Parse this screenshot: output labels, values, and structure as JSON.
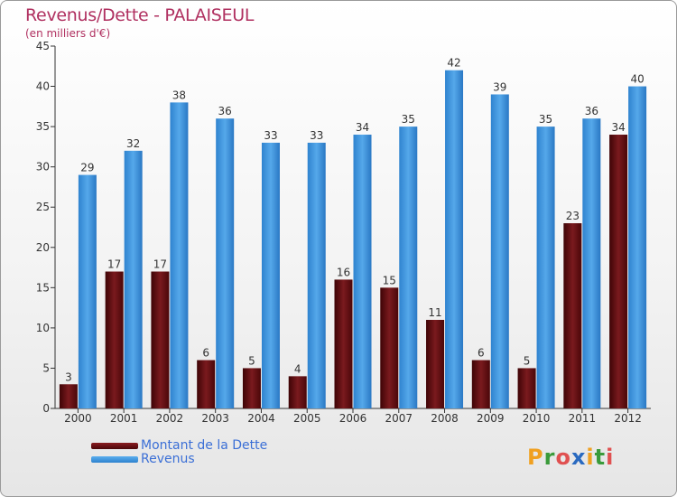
{
  "title": "Revenus/Dette - PALAISEUL",
  "subtitle": "(en milliers d'€)",
  "logo": {
    "text": "Proxiti",
    "letters": [
      "P",
      "r",
      "o",
      "x",
      "i",
      "t",
      "i"
    ],
    "colors": [
      "#f0a020",
      "#3a9a3a",
      "#e05050",
      "#2a6ac0",
      "#f0a020",
      "#3a9a3a",
      "#e05050"
    ]
  },
  "legend": {
    "items": [
      {
        "label": "Montant de la Dette",
        "color": "#6b0f12"
      },
      {
        "label": "Revenus",
        "color": "#3d93dc"
      }
    ]
  },
  "chart_data": {
    "type": "bar",
    "categories": [
      "2000",
      "2001",
      "2002",
      "2003",
      "2004",
      "2005",
      "2006",
      "2007",
      "2008",
      "2009",
      "2010",
      "2011",
      "2012"
    ],
    "series": [
      {
        "name": "Montant de la Dette",
        "values": [
          3,
          17,
          17,
          6,
          5,
          4,
          16,
          15,
          11,
          6,
          5,
          23,
          34
        ],
        "color": "#6b0f12"
      },
      {
        "name": "Revenus",
        "values": [
          29,
          32,
          38,
          36,
          33,
          33,
          34,
          35,
          42,
          39,
          35,
          36,
          40
        ],
        "color": "#3d93dc"
      }
    ],
    "ylim": [
      0,
      45
    ],
    "yticks": [
      0,
      5,
      10,
      15,
      20,
      25,
      30,
      35,
      40,
      45
    ],
    "grid": false,
    "legend_position": "bottom-left"
  }
}
